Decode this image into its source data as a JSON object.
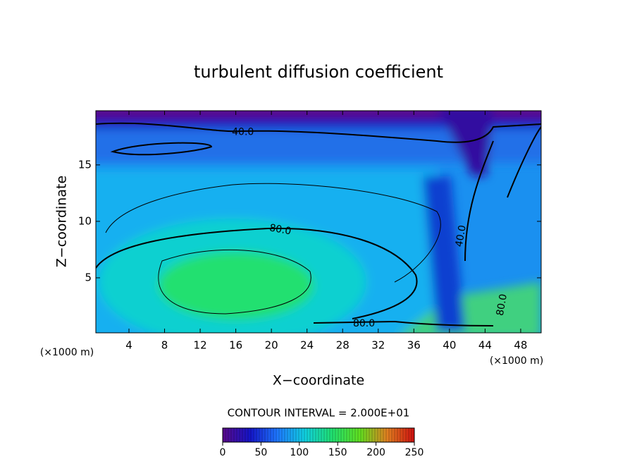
{
  "chart_data": {
    "type": "contour",
    "title": "turbulent diffusion coefficient",
    "xlabel": "X−coordinate",
    "ylabel": "Z−coordinate",
    "xunit_left": "(×1000 m)",
    "xunit_right": "(×1000 m)",
    "xlim": [
      0.28,
      50.3
    ],
    "ylim": [
      0.125,
      19.8
    ],
    "xticks": [
      4,
      8,
      12,
      16,
      20,
      24,
      28,
      32,
      36,
      40,
      44,
      48
    ],
    "yticks": [
      5,
      10,
      15
    ],
    "contour_labels": [
      {
        "value": 40,
        "label": "40.0",
        "x": 16.8,
        "y": 17.9,
        "angle": 0
      },
      {
        "value": 80,
        "label": "80.0",
        "x": 21,
        "y": 9.25,
        "angle": 10
      },
      {
        "value": 40,
        "label": "40.0",
        "x": 41.3,
        "y": 8.7,
        "angle": -80
      },
      {
        "value": 80,
        "label": "80.0",
        "x": 30.4,
        "y": 0.94,
        "angle": 0
      },
      {
        "value": 80,
        "label": "80.0",
        "x": 45.9,
        "y": 2.6,
        "angle": -80
      }
    ],
    "contour_interval": "CONTOUR INTERVAL = 2.000E+01",
    "clim": [
      0,
      250
    ],
    "cticks": [
      0,
      50,
      100,
      150,
      200,
      250
    ],
    "colormap": [
      "#5a0a8a",
      "#1414c8",
      "#1e78ff",
      "#10d0e0",
      "#20e070",
      "#60e020",
      "#e08020",
      "#d01010"
    ]
  }
}
